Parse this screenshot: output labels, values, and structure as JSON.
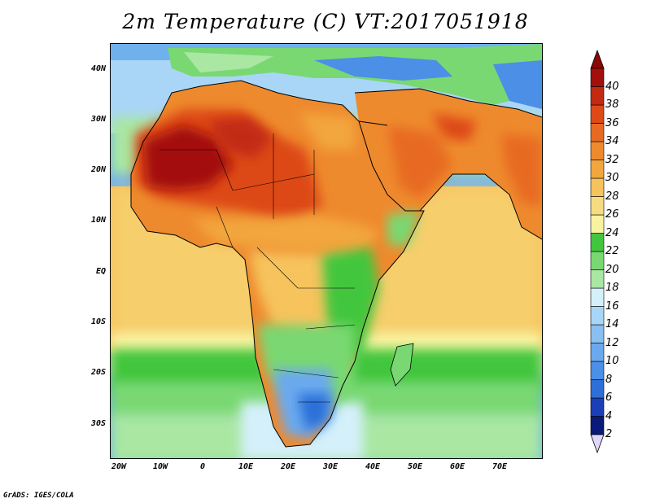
{
  "title": "2m Temperature (C) VT:2017051918",
  "credit": "GrADS: IGES/COLA",
  "lat_labels": [
    "40N",
    "30N",
    "20N",
    "10N",
    "EQ",
    "10S",
    "20S",
    "30S"
  ],
  "lon_labels": [
    "20W",
    "10W",
    "0",
    "10E",
    "20E",
    "30E",
    "40E",
    "50E",
    "60E",
    "70E"
  ],
  "colorbar": {
    "levels": [
      "2",
      "4",
      "6",
      "8",
      "10",
      "12",
      "14",
      "16",
      "18",
      "20",
      "22",
      "24",
      "26",
      "28",
      "30",
      "32",
      "34",
      "36",
      "38",
      "40"
    ],
    "colors": [
      "#0a1a7a",
      "#1a3fb8",
      "#2c6fd8",
      "#4b8fe6",
      "#6aa9ee",
      "#89c0f2",
      "#a8d6f6",
      "#d4f0fa",
      "#a9e7a2",
      "#79d872",
      "#42c63e",
      "#f9f3a0",
      "#f6dc80",
      "#f6c35c",
      "#f3a63e",
      "#ee8a2e",
      "#e86a22",
      "#dd4a18",
      "#c22a12",
      "#a3100c"
    ],
    "under_color": "#ded8fa",
    "over_color": "#8a0806"
  }
}
